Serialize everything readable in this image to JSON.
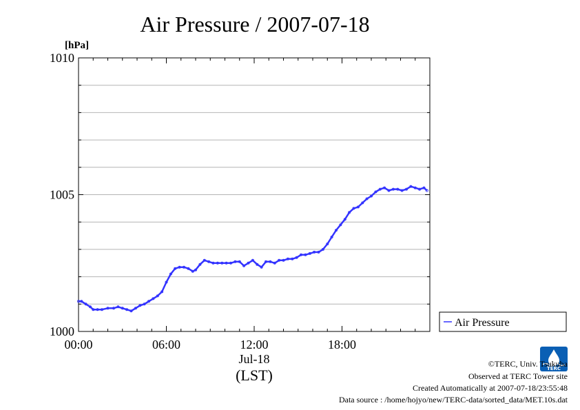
{
  "chart_data": {
    "type": "line",
    "title": "Air Pressure / 2007-07-18",
    "ylabel": "[hPa]",
    "xlabel": "(LST)",
    "date_label": "Jul-18",
    "ylim": [
      1000,
      1010
    ],
    "xlim_hours": [
      0,
      24
    ],
    "y_ticks": [
      "1000",
      "1005",
      "1010"
    ],
    "x_ticks": [
      {
        "hour": 0,
        "label": "00:00"
      },
      {
        "hour": 6,
        "label": "06:00"
      },
      {
        "hour": 12,
        "label": "12:00"
      },
      {
        "hour": 18,
        "label": "18:00"
      }
    ],
    "grid": true,
    "legend_position": "right",
    "series": [
      {
        "name": "Air Pressure",
        "color": "#3333ff",
        "x_hours": [
          0,
          0.2,
          0.5,
          0.8,
          1.0,
          1.3,
          1.6,
          2.0,
          2.4,
          2.7,
          3.0,
          3.3,
          3.6,
          3.9,
          4.2,
          4.5,
          4.8,
          5.1,
          5.4,
          5.7,
          6.0,
          6.3,
          6.6,
          6.9,
          7.2,
          7.5,
          7.8,
          8.0,
          8.3,
          8.6,
          8.9,
          9.2,
          9.5,
          9.8,
          10.1,
          10.4,
          10.7,
          11.0,
          11.3,
          11.6,
          11.9,
          12.2,
          12.5,
          12.8,
          13.1,
          13.4,
          13.7,
          14.0,
          14.3,
          14.6,
          14.9,
          15.2,
          15.5,
          15.8,
          16.1,
          16.4,
          16.7,
          17.0,
          17.3,
          17.6,
          17.9,
          18.2,
          18.5,
          18.8,
          19.1,
          19.4,
          19.7,
          20.0,
          20.3,
          20.6,
          20.9,
          21.2,
          21.5,
          21.8,
          22.1,
          22.4,
          22.7,
          23.0,
          23.3,
          23.6,
          23.8
        ],
        "values": [
          1001.1,
          1001.1,
          1001.0,
          1000.9,
          1000.8,
          1000.8,
          1000.8,
          1000.85,
          1000.85,
          1000.9,
          1000.85,
          1000.8,
          1000.75,
          1000.85,
          1000.95,
          1001.0,
          1001.1,
          1001.2,
          1001.3,
          1001.45,
          1001.8,
          1002.1,
          1002.3,
          1002.35,
          1002.35,
          1002.3,
          1002.2,
          1002.25,
          1002.45,
          1002.6,
          1002.55,
          1002.5,
          1002.5,
          1002.5,
          1002.5,
          1002.5,
          1002.55,
          1002.55,
          1002.4,
          1002.5,
          1002.6,
          1002.45,
          1002.35,
          1002.55,
          1002.55,
          1002.5,
          1002.6,
          1002.6,
          1002.65,
          1002.65,
          1002.7,
          1002.8,
          1002.8,
          1002.85,
          1002.9,
          1002.9,
          1003.0,
          1003.2,
          1003.45,
          1003.7,
          1003.9,
          1004.1,
          1004.35,
          1004.5,
          1004.55,
          1004.7,
          1004.85,
          1004.95,
          1005.1,
          1005.2,
          1005.25,
          1005.15,
          1005.2,
          1005.2,
          1005.15,
          1005.2,
          1005.3,
          1005.25,
          1005.2,
          1005.25,
          1005.15
        ]
      }
    ]
  },
  "credits": {
    "line1": "©TERC, Univ. Tsukuba",
    "line2": "Observed at TERC Tower site",
    "line3": "Created Automatically at 2007-07-18/23:55:48",
    "line4": "Data source : /home/hojyo/new/TERC-data/sorted_data/MET.10s.dat",
    "logo_text": "TERC"
  }
}
